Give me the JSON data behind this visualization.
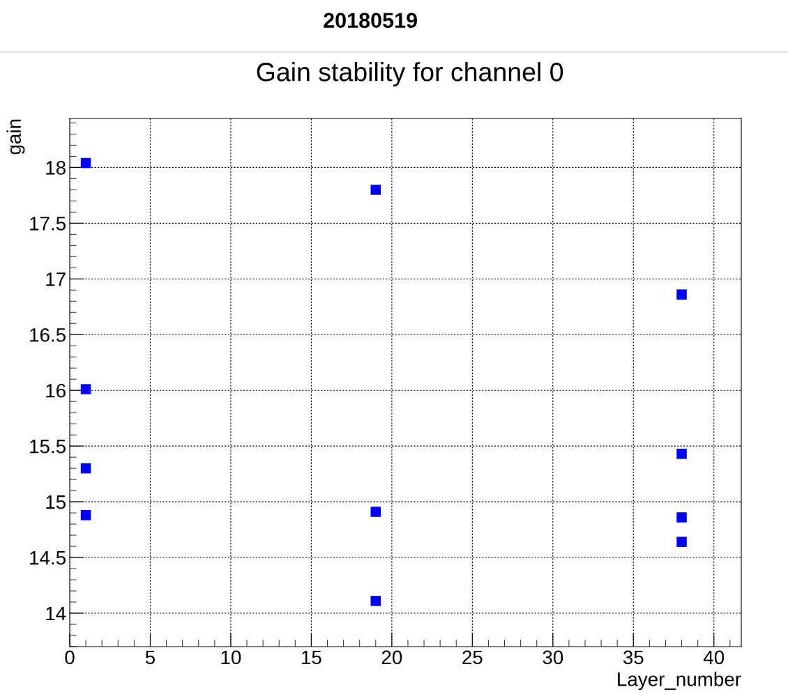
{
  "chart_data": {
    "type": "scatter",
    "title": "20180519",
    "subtitle": "Gain stability for channel 0",
    "xlabel": "Layer_number",
    "ylabel": "gain",
    "x": [
      1,
      1,
      1,
      1,
      19,
      19,
      19,
      38,
      38,
      38,
      38
    ],
    "series": [
      {
        "color": "#0000ff",
        "values": [
          18.04,
          16.01,
          15.3,
          14.88,
          17.8,
          14.91,
          14.11,
          16.86,
          15.43,
          14.86,
          14.64
        ]
      }
    ],
    "marker": "square",
    "grid": true,
    "legend": false,
    "xlim": [
      0,
      41.7
    ],
    "xticks": [
      0,
      5,
      10,
      15,
      20,
      25,
      30,
      35,
      40
    ],
    "ylim": [
      13.7,
      18.44
    ],
    "yticks": [
      14,
      14.5,
      15,
      15.5,
      16,
      16.5,
      17,
      17.5,
      18
    ]
  }
}
